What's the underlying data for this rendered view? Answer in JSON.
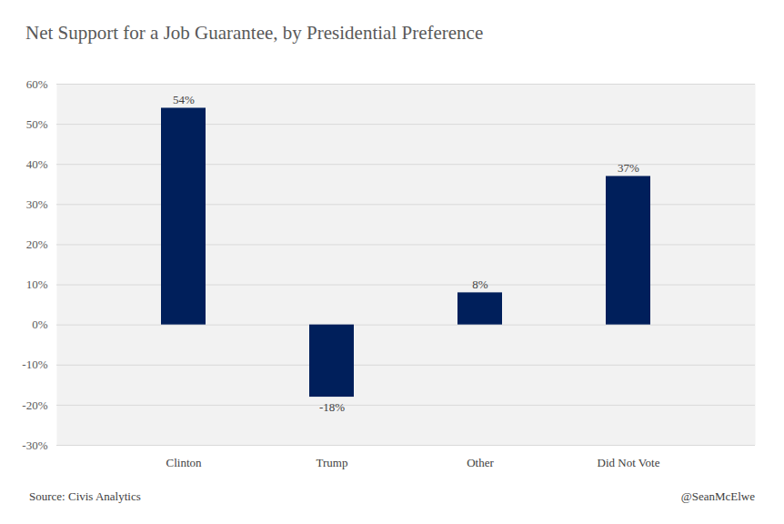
{
  "chart_data": {
    "type": "bar",
    "title": "Net Support for a Job Guarantee, by Presidential Preference",
    "categories": [
      "Clinton",
      "Trump",
      "Other",
      "Did Not Vote"
    ],
    "values": [
      54,
      -18,
      8,
      37
    ],
    "value_labels": [
      "54%",
      "-18%",
      "8%",
      "37%"
    ],
    "data_labels": true,
    "color": "#001f5b",
    "ylim": [
      -30,
      60
    ],
    "yticks": [
      {
        "value": -30,
        "label": "-30%"
      },
      {
        "value": -20,
        "label": "-20%"
      },
      {
        "value": -10,
        "label": "-10%"
      },
      {
        "value": 0,
        "label": "0%"
      },
      {
        "value": 10,
        "label": "10%"
      },
      {
        "value": 20,
        "label": "20%"
      },
      {
        "value": 30,
        "label": "30%"
      },
      {
        "value": 40,
        "label": "40%"
      },
      {
        "value": 50,
        "label": "50%"
      },
      {
        "value": 60,
        "label": "60%"
      }
    ],
    "grid": true,
    "source": "Source: Civis Analytics",
    "credit": "@SeanMcElwe"
  }
}
